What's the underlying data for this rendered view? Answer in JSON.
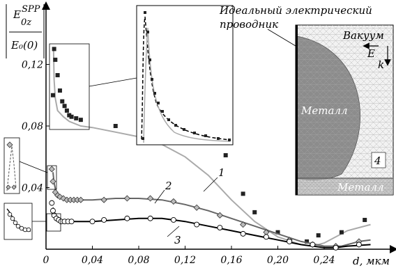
{
  "chart_data": {
    "type": "line",
    "ylabel": {
      "numerator": "E",
      "numerator_sup": "SPP",
      "numerator_sub": "0z",
      "denominator": "E₀(0)"
    },
    "xlabel": "d, мкм",
    "xticks": [
      "0",
      "0,04",
      "0,08",
      "0,12",
      "0,16",
      "0,20",
      "0,24"
    ],
    "yticks": [
      "0,04",
      "0,08",
      "0,12"
    ],
    "xlim": [
      0,
      0.28
    ],
    "ylim": [
      0,
      0.14
    ],
    "curve_labels": [
      "1",
      "2",
      "3"
    ],
    "series": [
      {
        "name": "1",
        "color": "#aaaaaa",
        "line": [
          [
            0.0065,
            0.13
          ],
          [
            0.007,
            0.11
          ],
          [
            0.008,
            0.098
          ],
          [
            0.01,
            0.09
          ],
          [
            0.015,
            0.086
          ],
          [
            0.02,
            0.083
          ],
          [
            0.03,
            0.08
          ],
          [
            0.04,
            0.079
          ],
          [
            0.06,
            0.076
          ],
          [
            0.08,
            0.073
          ],
          [
            0.1,
            0.068
          ],
          [
            0.12,
            0.06
          ],
          [
            0.14,
            0.048
          ],
          [
            0.16,
            0.032
          ],
          [
            0.18,
            0.018
          ],
          [
            0.2,
            0.008
          ],
          [
            0.22,
            0.003
          ],
          [
            0.23,
            0.002
          ],
          [
            0.24,
            0.004
          ],
          [
            0.26,
            0.012
          ],
          [
            0.28,
            0.016
          ]
        ],
        "markers": [
          [
            0.006,
            0.1
          ],
          [
            0.007,
            0.13
          ],
          [
            0.008,
            0.123
          ],
          [
            0.01,
            0.113
          ],
          [
            0.012,
            0.103
          ],
          [
            0.014,
            0.096
          ],
          [
            0.016,
            0.093
          ],
          [
            0.018,
            0.09
          ],
          [
            0.02,
            0.087
          ],
          [
            0.022,
            0.086
          ],
          [
            0.026,
            0.085
          ],
          [
            0.03,
            0.084
          ],
          [
            0.06,
            0.08
          ],
          [
            0.09,
            0.081
          ],
          [
            0.125,
            0.071
          ],
          [
            0.155,
            0.061
          ],
          [
            0.17,
            0.036
          ],
          [
            0.18,
            0.024
          ],
          [
            0.2,
            0.011
          ],
          [
            0.225,
            0.005
          ],
          [
            0.235,
            0.009
          ],
          [
            0.255,
            0.011
          ],
          [
            0.275,
            0.019
          ]
        ]
      },
      {
        "name": "2",
        "color": "#666666",
        "line": [
          [
            0.006,
            0.05
          ],
          [
            0.007,
            0.043
          ],
          [
            0.009,
            0.036
          ],
          [
            0.013,
            0.033
          ],
          [
            0.02,
            0.032
          ],
          [
            0.04,
            0.032
          ],
          [
            0.06,
            0.033
          ],
          [
            0.08,
            0.033
          ],
          [
            0.1,
            0.032
          ],
          [
            0.12,
            0.029
          ],
          [
            0.14,
            0.025
          ],
          [
            0.16,
            0.02
          ],
          [
            0.18,
            0.015
          ],
          [
            0.2,
            0.01
          ],
          [
            0.22,
            0.005
          ],
          [
            0.24,
            0.002
          ],
          [
            0.255,
            0.002
          ],
          [
            0.27,
            0.005
          ],
          [
            0.28,
            0.006
          ]
        ],
        "markers": [
          [
            0.005,
            0.052
          ],
          [
            0.006,
            0.044
          ],
          [
            0.008,
            0.037
          ],
          [
            0.01,
            0.035
          ],
          [
            0.012,
            0.034
          ],
          [
            0.015,
            0.033
          ],
          [
            0.018,
            0.032
          ],
          [
            0.021,
            0.032
          ],
          [
            0.024,
            0.032
          ],
          [
            0.027,
            0.032
          ],
          [
            0.03,
            0.032
          ],
          [
            0.05,
            0.032
          ],
          [
            0.07,
            0.033
          ],
          [
            0.09,
            0.033
          ],
          [
            0.11,
            0.031
          ],
          [
            0.13,
            0.027
          ],
          [
            0.15,
            0.022
          ],
          [
            0.17,
            0.016
          ],
          [
            0.19,
            0.011
          ],
          [
            0.21,
            0.006
          ],
          [
            0.23,
            0.003
          ],
          [
            0.25,
            0.002
          ],
          [
            0.27,
            0.005
          ]
        ]
      },
      {
        "name": "3",
        "color": "#000000",
        "line": [
          [
            0.006,
            0.027
          ],
          [
            0.008,
            0.021
          ],
          [
            0.011,
            0.019
          ],
          [
            0.015,
            0.018
          ],
          [
            0.02,
            0.018
          ],
          [
            0.04,
            0.018
          ],
          [
            0.06,
            0.019
          ],
          [
            0.08,
            0.02
          ],
          [
            0.1,
            0.02
          ],
          [
            0.12,
            0.018
          ],
          [
            0.14,
            0.015
          ],
          [
            0.16,
            0.012
          ],
          [
            0.18,
            0.009
          ],
          [
            0.2,
            0.006
          ],
          [
            0.22,
            0.003
          ],
          [
            0.24,
            0.001
          ],
          [
            0.25,
            0.001
          ],
          [
            0.26,
            0.002
          ],
          [
            0.28,
            0.003
          ]
        ],
        "markers": [
          [
            0.005,
            0.03
          ],
          [
            0.006,
            0.025
          ],
          [
            0.007,
            0.022
          ],
          [
            0.009,
            0.02
          ],
          [
            0.011,
            0.019
          ],
          [
            0.013,
            0.018
          ],
          [
            0.016,
            0.018
          ],
          [
            0.019,
            0.018
          ],
          [
            0.022,
            0.018
          ],
          [
            0.04,
            0.018
          ],
          [
            0.05,
            0.019
          ],
          [
            0.07,
            0.02
          ],
          [
            0.09,
            0.02
          ],
          [
            0.11,
            0.019
          ],
          [
            0.13,
            0.016
          ],
          [
            0.15,
            0.014
          ],
          [
            0.17,
            0.01
          ],
          [
            0.19,
            0.008
          ],
          [
            0.21,
            0.005
          ],
          [
            0.23,
            0.003
          ],
          [
            0.25,
            0.001
          ],
          [
            0.27,
            0.003
          ]
        ]
      }
    ],
    "inset_labels": {
      "conductor": [
        "Идеальный электрический",
        "проводник"
      ],
      "vacuum": "Вакуум",
      "e_field": "E",
      "k_vector": "k",
      "metal_sphere": "Металл",
      "metal_substrate": "Металл",
      "region_number": "4"
    }
  }
}
